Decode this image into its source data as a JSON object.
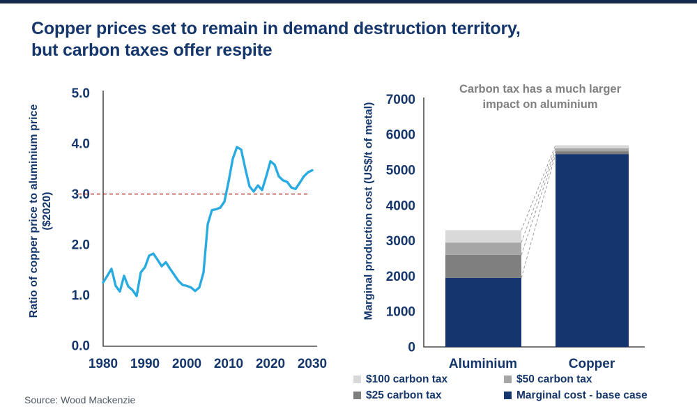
{
  "header": {
    "title_line1": "Copper prices set to remain in demand destruction territory,",
    "title_line2": "but carbon taxes offer respite"
  },
  "footer": {
    "source": "Source: Wood Mackenzie"
  },
  "colors": {
    "navy": "#14366b",
    "accent_bar": "#15294f",
    "axis_gray": "#4d4d4d",
    "annotation_gray": "#808080",
    "source_gray": "#4e5a66"
  },
  "chart_data": [
    {
      "type": "line",
      "title": "",
      "ylabel_line1": "Ratio of copper price to aluminium price",
      "ylabel_line2": "($2020)",
      "xlabel": "",
      "xlim": [
        1980,
        2030
      ],
      "ylim": [
        0.0,
        5.0
      ],
      "grid": false,
      "xticks": [
        1980,
        1990,
        2000,
        2010,
        2020,
        2030
      ],
      "ytick_labels": [
        "0.0",
        "1.0",
        "2.0",
        "3.0",
        "4.0",
        "5.0"
      ],
      "line_color": "#29abe2",
      "reference_line": {
        "value": 3.0,
        "style": "dashed",
        "color": "#a00000"
      },
      "x": [
        1980,
        1981,
        1982,
        1983,
        1984,
        1985,
        1986,
        1987,
        1988,
        1989,
        1990,
        1991,
        1992,
        1993,
        1994,
        1995,
        1996,
        1997,
        1998,
        1999,
        2000,
        2001,
        2002,
        2003,
        2004,
        2005,
        2006,
        2007,
        2008,
        2009,
        2010,
        2011,
        2012,
        2013,
        2014,
        2015,
        2016,
        2017,
        2018,
        2019,
        2020,
        2021,
        2022,
        2023,
        2024,
        2025,
        2026,
        2027,
        2028,
        2029,
        2030
      ],
      "y": [
        1.25,
        1.38,
        1.52,
        1.18,
        1.07,
        1.38,
        1.17,
        1.1,
        0.98,
        1.45,
        1.55,
        1.78,
        1.82,
        1.7,
        1.57,
        1.65,
        1.52,
        1.4,
        1.28,
        1.2,
        1.18,
        1.15,
        1.08,
        1.15,
        1.45,
        2.4,
        2.68,
        2.7,
        2.73,
        2.85,
        3.25,
        3.7,
        3.93,
        3.88,
        3.5,
        3.15,
        3.05,
        3.17,
        3.08,
        3.35,
        3.65,
        3.58,
        3.35,
        3.27,
        3.24,
        3.13,
        3.1,
        3.22,
        3.35,
        3.43,
        3.47
      ]
    },
    {
      "type": "bar",
      "stacked": true,
      "title": "",
      "ylabel": "Marginal production cost (US$/t of metal)",
      "ylim": [
        0,
        7000
      ],
      "grid": false,
      "yticks": [
        0,
        1000,
        2000,
        3000,
        4000,
        5000,
        6000,
        7000
      ],
      "categories": [
        "Aluminium",
        "Copper"
      ],
      "series": [
        {
          "name": "Marginal cost - base case",
          "values": [
            1950,
            5450
          ],
          "color": "#14356e"
        },
        {
          "name": "$25 carbon tax",
          "values": [
            650,
            80
          ],
          "color": "#7f7f7f"
        },
        {
          "name": "$50 carbon tax",
          "values": [
            350,
            80
          ],
          "color": "#a6a6a6"
        },
        {
          "name": "$100 carbon tax",
          "values": [
            350,
            90
          ],
          "color": "#d9d9d9"
        }
      ],
      "totals": [
        3300,
        5700
      ],
      "annotation_line1": "Carbon tax has a much larger",
      "annotation_line2": "impact on aluminium",
      "legend_position": "bottom",
      "legend": [
        {
          "label": "$100 carbon tax",
          "color": "#d9d9d9"
        },
        {
          "label": "$50 carbon tax",
          "color": "#a6a6a6"
        },
        {
          "label": "$25 carbon tax",
          "color": "#7f7f7f"
        },
        {
          "label": "Marginal cost - base case",
          "color": "#14356e"
        }
      ]
    }
  ]
}
